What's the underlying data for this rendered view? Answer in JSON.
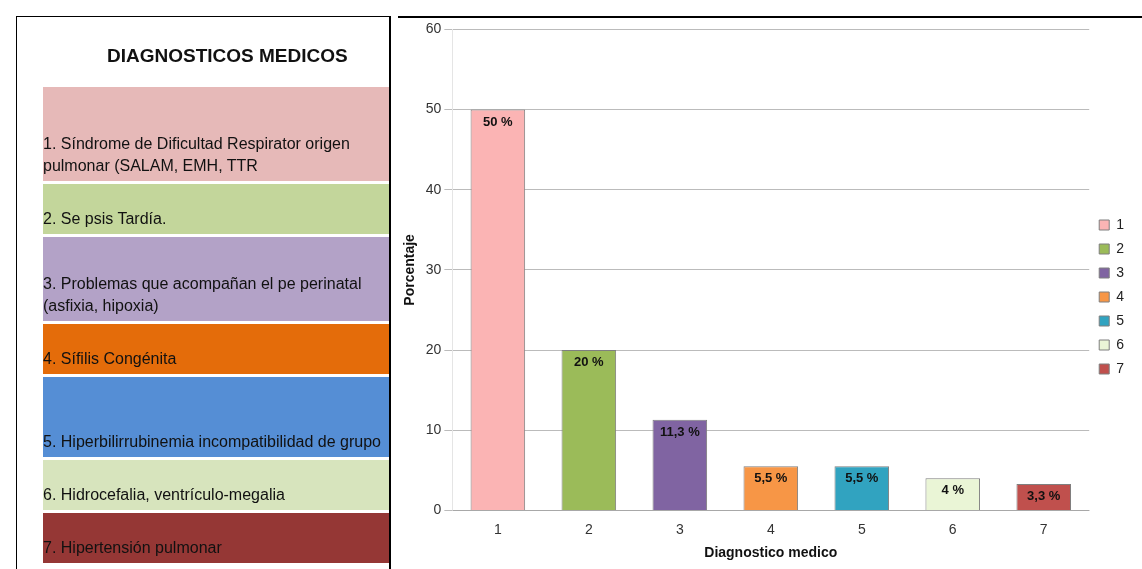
{
  "chart_data": [
    {
      "type": "other",
      "title": "DIAGNOSTICOS MEDICOS",
      "annotations": [
        "1.  Síndrome de Dificultad Respirator origen pulmonar (SALAM, EMH, TTR",
        "2.  Se psis Tardía.",
        "3.  Problemas que acompañan el pe perinatal (asfixia, hipoxia)",
        "4.  Sífilis Congénita",
        "5.  Hiperbilirrubinemia incompatibilidad de grupo",
        "6.  Hidrocefalia, ventrículo-megalia",
        "7.  Hipertensión pulmonar"
      ]
    },
    {
      "type": "bar",
      "xlabel": "Diagnostico medico",
      "ylabel": "Porcentaje",
      "categories": [
        "1",
        "2",
        "3",
        "4",
        "5",
        "6",
        "7"
      ],
      "series": [
        {
          "name": "1",
          "color": "#fbb4b4",
          "values": [
            50,
            null,
            null,
            null,
            null,
            null,
            null
          ],
          "value_labels": [
            "50 %",
            null,
            null,
            null,
            null,
            null,
            null
          ]
        },
        {
          "name": "2",
          "color": "#9bbb59",
          "values": [
            null,
            20,
            null,
            null,
            null,
            null,
            null
          ],
          "value_labels": [
            null,
            "20 %",
            null,
            null,
            null,
            null,
            null
          ]
        },
        {
          "name": "3",
          "color": "#8064a2",
          "values": [
            null,
            null,
            11.3,
            null,
            null,
            null,
            null
          ],
          "value_labels": [
            null,
            null,
            "11,3 %",
            null,
            null,
            null,
            null
          ]
        },
        {
          "name": "4",
          "color": "#f79646",
          "values": [
            null,
            null,
            null,
            5.5,
            null,
            null,
            null
          ],
          "value_labels": [
            null,
            null,
            null,
            "5,5 %",
            null,
            null,
            null
          ]
        },
        {
          "name": "5",
          "color": "#31a3c0",
          "values": [
            null,
            null,
            null,
            null,
            5.5,
            null,
            null
          ],
          "value_labels": [
            null,
            null,
            null,
            null,
            "5,5 %",
            null,
            null
          ]
        },
        {
          "name": "6",
          "color": "#eaf5d6",
          "values": [
            null,
            null,
            null,
            null,
            null,
            4,
            null
          ],
          "value_labels": [
            null,
            null,
            null,
            null,
            null,
            "4 %",
            null
          ]
        },
        {
          "name": "7",
          "color": "#c0504d",
          "values": [
            null,
            null,
            null,
            null,
            null,
            null,
            3.3
          ],
          "value_labels": [
            null,
            null,
            null,
            null,
            null,
            null,
            "3,3 %"
          ]
        }
      ],
      "ylim": [
        0,
        60
      ],
      "yticks": [
        0,
        10,
        20,
        30,
        40,
        50,
        60
      ],
      "grid": "y",
      "legend": "right"
    }
  ]
}
